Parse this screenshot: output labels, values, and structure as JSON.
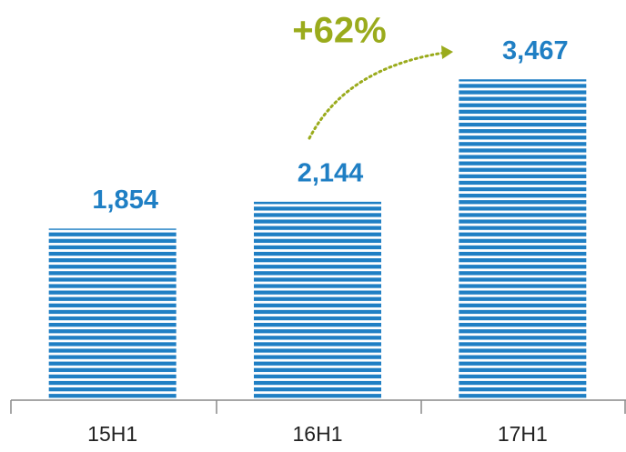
{
  "chart_data": {
    "type": "bar",
    "categories": [
      "15H1",
      "16H1",
      "17H1"
    ],
    "values": [
      1854,
      2144,
      3467
    ],
    "value_labels": [
      "1,854",
      "2,144",
      "3,467"
    ],
    "color": "#1f7fc4",
    "annotation_color": "#9aab1c",
    "annotations": [
      "+62%"
    ],
    "ylim": [
      0,
      4000
    ]
  }
}
